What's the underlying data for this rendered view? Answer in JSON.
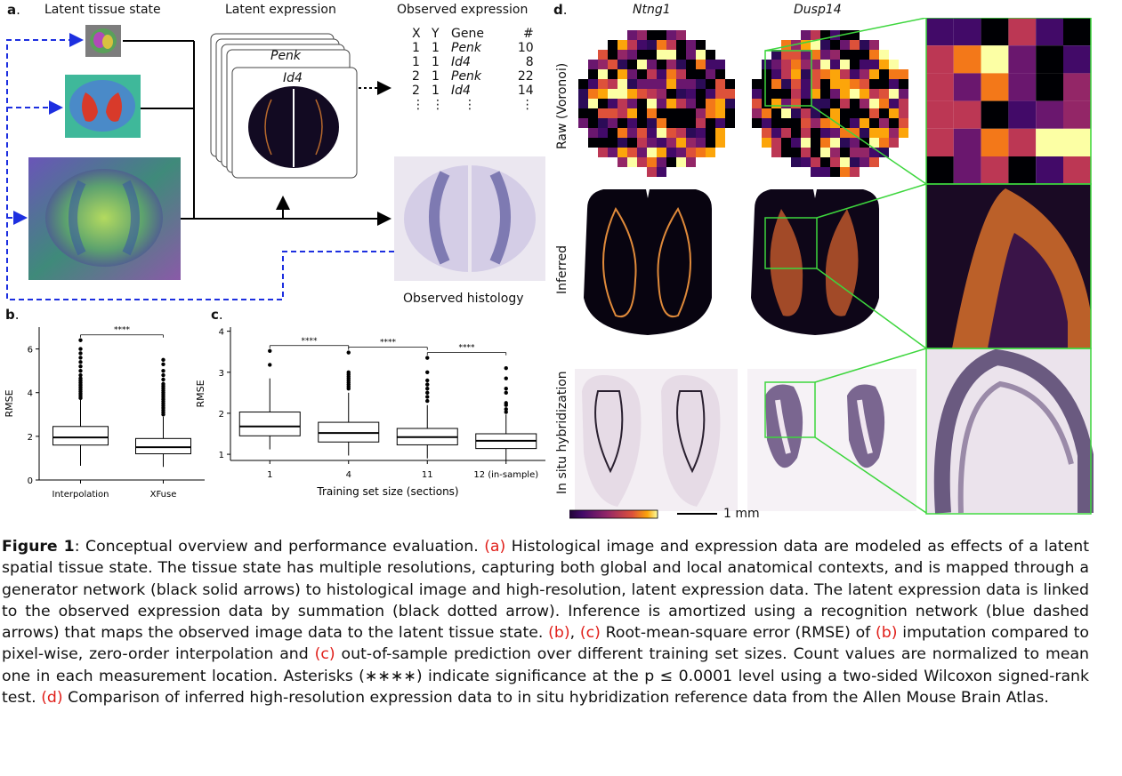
{
  "panel_a": {
    "letter": "a",
    "latent_tissue_state": "Latent tissue state",
    "latent_expression": "Latent expression",
    "observed_expression": "Observed expression",
    "observed_histology": "Observed histology",
    "stack_genes": [
      "Penk",
      "Id4"
    ],
    "table": {
      "headers": [
        "X",
        "Y",
        "Gene",
        "#"
      ],
      "rows": [
        [
          "1",
          "1",
          "Penk",
          "10"
        ],
        [
          "1",
          "1",
          "Id4",
          "8"
        ],
        [
          "2",
          "1",
          "Penk",
          "22"
        ],
        [
          "2",
          "1",
          "Id4",
          "14"
        ]
      ],
      "ellipsis": "⋮"
    },
    "colors": {
      "recognition_arrow": "#1d2fe0",
      "generator_arrow": "#000000"
    }
  },
  "chart_data": [
    {
      "panel": "b",
      "type": "box",
      "ylabel": "RMSE",
      "ylim": [
        0,
        7
      ],
      "yticks": [
        0,
        2,
        4,
        6
      ],
      "categories": [
        "Interpolation",
        "XFuse"
      ],
      "boxes": [
        {
          "q1": 1.6,
          "median": 1.95,
          "q3": 2.45,
          "whisker_low": 0.65,
          "whisker_high": 3.7,
          "outliers": [
            3.75,
            3.85,
            3.95,
            4.05,
            4.15,
            4.25,
            4.35,
            4.45,
            4.55,
            4.65,
            4.8,
            5.0,
            5.2,
            5.4,
            5.6,
            5.8,
            6.0,
            6.4
          ]
        },
        {
          "q1": 1.2,
          "median": 1.5,
          "q3": 1.9,
          "whisker_low": 0.6,
          "whisker_high": 2.9,
          "outliers": [
            3.0,
            3.1,
            3.2,
            3.3,
            3.4,
            3.5,
            3.6,
            3.7,
            3.8,
            3.9,
            4.0,
            4.1,
            4.2,
            4.3,
            4.4,
            4.6,
            4.8,
            5.0,
            5.3,
            5.5
          ]
        }
      ],
      "annotations": [
        {
          "text": "****",
          "between": [
            0,
            1
          ]
        }
      ]
    },
    {
      "panel": "c",
      "type": "box",
      "ylabel": "RMSE",
      "xlabel": "Training set size (sections)",
      "ylim": [
        0.85,
        4.1
      ],
      "yticks": [
        1,
        2,
        3,
        4
      ],
      "categories": [
        "1",
        "4",
        "11",
        "12 (in-sample)"
      ],
      "boxes": [
        {
          "q1": 1.45,
          "median": 1.68,
          "q3": 2.03,
          "whisker_low": 1.12,
          "whisker_high": 2.85,
          "outliers": [
            3.18,
            3.52
          ]
        },
        {
          "q1": 1.3,
          "median": 1.52,
          "q3": 1.78,
          "whisker_low": 0.97,
          "whisker_high": 2.5,
          "outliers": [
            2.6,
            2.65,
            2.7,
            2.75,
            2.8,
            2.85,
            2.9,
            2.95,
            3.0,
            3.48
          ]
        },
        {
          "q1": 1.23,
          "median": 1.42,
          "q3": 1.63,
          "whisker_low": 0.9,
          "whisker_high": 2.2,
          "outliers": [
            2.3,
            2.4,
            2.5,
            2.6,
            2.7,
            2.8,
            3.0,
            3.35
          ]
        },
        {
          "q1": 1.14,
          "median": 1.33,
          "q3": 1.5,
          "whisker_low": 0.85,
          "whisker_high": 1.97,
          "outliers": [
            2.03,
            2.1,
            2.2,
            2.25,
            2.5,
            2.6,
            2.85,
            3.1
          ]
        }
      ],
      "annotations": [
        {
          "text": "****",
          "between": [
            0,
            1
          ]
        },
        {
          "text": "****",
          "between": [
            1,
            2
          ]
        },
        {
          "text": "****",
          "between": [
            2,
            3
          ]
        }
      ]
    }
  ],
  "panel_d": {
    "letter": "d",
    "genes": [
      "Ntng1",
      "Dusp14"
    ],
    "rows": [
      "Raw (Voronoi)",
      "Inferred",
      "In situ hybridization"
    ],
    "scale_bar": "1 mm",
    "colors": {
      "zoom_frame": "#3dd63d"
    }
  },
  "caption": {
    "figure_label": "Figure 1",
    "text_1": ":  Conceptual overview and performance evaluation. ",
    "ref_a": "(a)",
    "text_2": " Histological image and expression data are modeled as effects of a latent spatial tissue state. The tissue state has multiple resolutions, capturing both global and local anatomical contexts, and is mapped through a generator network (black solid arrows) to histological image and high-resolution, latent expression data. The latent expression data is linked to the observed expression data by summation (black dotted arrow). Inference is amortized using a recognition network (blue dashed arrows) that maps the observed image data to the latent tissue state. ",
    "ref_b1": "(b)",
    "comma": ", ",
    "ref_c1": "(c)",
    "text_3": " Root-mean-square error (RMSE) of ",
    "ref_b2": "(b)",
    "text_4": " imputation compared to pixel-wise, zero-order interpolation and ",
    "ref_c2": "(c)",
    "text_5": " out-of-sample prediction over different training set sizes. Count values are normalized to mean one in each measurement location. Asterisks (∗∗∗∗) indicate significance at the p ≤ 0.0001 level using a two-sided Wilcoxon signed-rank test. ",
    "ref_d": "(d)",
    "text_6": " Comparison of inferred high-resolution expression data to in situ hybridization reference data from the Allen Mouse Brain Atlas."
  }
}
